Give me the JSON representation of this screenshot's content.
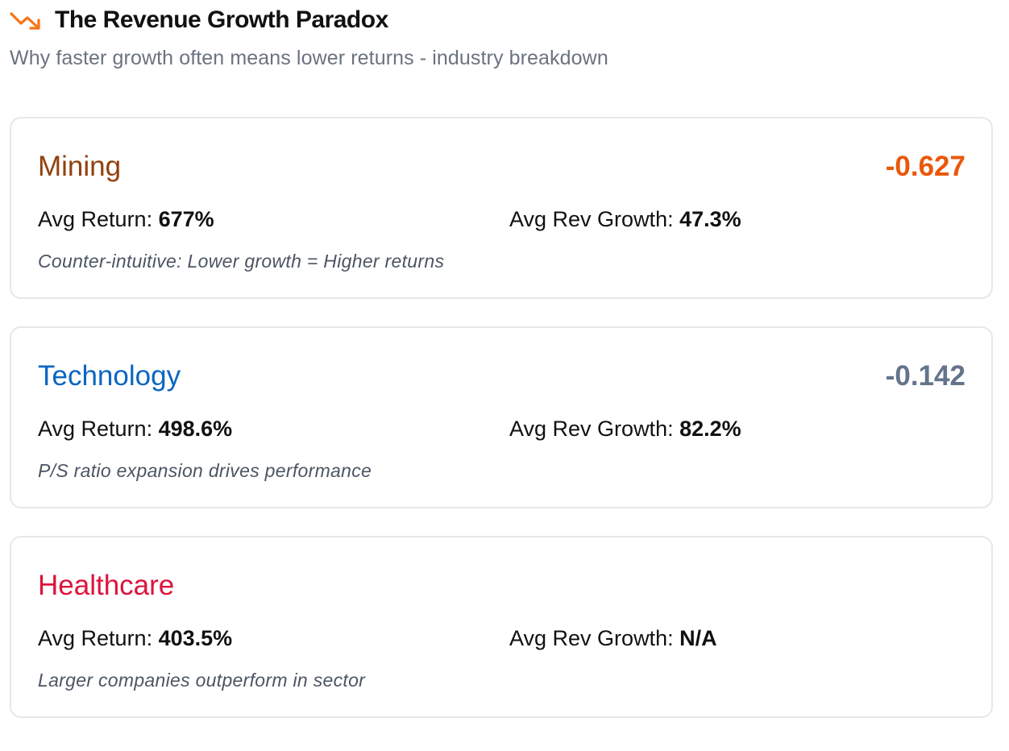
{
  "header": {
    "title": "The Revenue Growth Paradox",
    "subtitle": "Why faster growth often means lower returns - industry breakdown",
    "icon": "trending-down-icon",
    "icon_color": "#f97316"
  },
  "industries": [
    {
      "name": "Mining",
      "name_color": "#92400e",
      "correlation": "-0.627",
      "correlation_color": "#ea580c",
      "return_label": "Avg Return: ",
      "return_value": "677%",
      "growth_label": "Avg Rev Growth: ",
      "growth_value": "47.3%",
      "note": "Counter-intuitive: Lower growth = Higher returns"
    },
    {
      "name": "Technology",
      "name_color": "#0a66c2",
      "correlation": "-0.142",
      "correlation_color": "#64748b",
      "return_label": "Avg Return: ",
      "return_value": "498.6%",
      "growth_label": "Avg Rev Growth: ",
      "growth_value": "82.2%",
      "note": "P/S ratio expansion drives performance"
    },
    {
      "name": "Healthcare",
      "name_color": "#dc143c",
      "correlation": "",
      "correlation_color": "#64748b",
      "return_label": "Avg Return: ",
      "return_value": "403.5%",
      "growth_label": "Avg Rev Growth: ",
      "growth_value": "N/A",
      "note": "Larger companies outperform in sector"
    }
  ]
}
